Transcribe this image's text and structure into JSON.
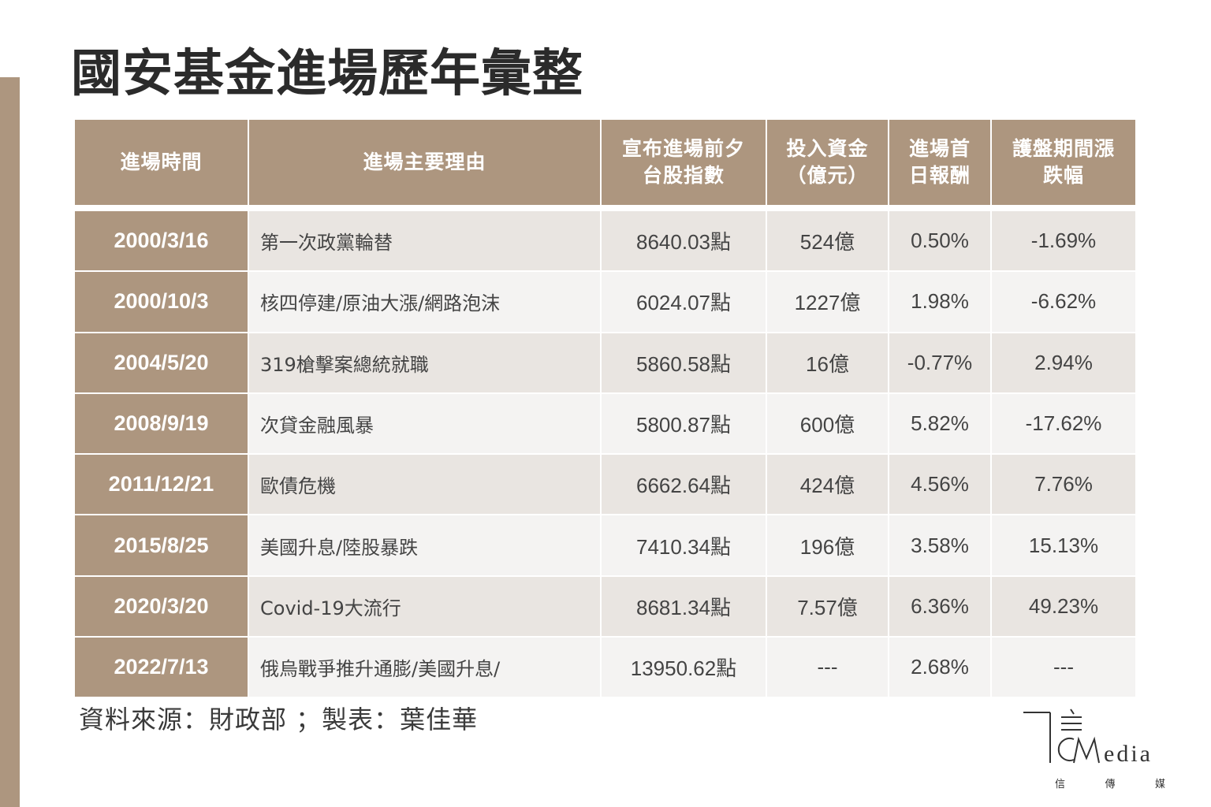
{
  "title": "國安基金進場歷年彙整",
  "table": {
    "headers": [
      {
        "line1": "進場時間",
        "line2": ""
      },
      {
        "line1": "進場主要理由",
        "line2": ""
      },
      {
        "line1": "宣布進場前夕",
        "line2": "台股指數"
      },
      {
        "line1": "投入資金",
        "line2": "（億元）"
      },
      {
        "line1": "進場首",
        "line2": "日報酬"
      },
      {
        "line1": "護盤期間漲",
        "line2": "跌幅"
      }
    ],
    "rows": [
      {
        "date": "2000/3/16",
        "reason": "第一次政黨輪替",
        "index": "8640.03點",
        "fund": "524億",
        "first_day": "0.50%",
        "change": "-1.69%"
      },
      {
        "date": "2000/10/3",
        "reason": "核四停建/原油大漲/網路泡沫",
        "index": "6024.07點",
        "fund": "1227億",
        "first_day": "1.98%",
        "change": "-6.62%"
      },
      {
        "date": "2004/5/20",
        "reason": "319槍擊案總統就職",
        "index": "5860.58點",
        "fund": "16億",
        "first_day": "-0.77%",
        "change": "2.94%"
      },
      {
        "date": "2008/9/19",
        "reason": "次貸金融風暴",
        "index": "5800.87點",
        "fund": "600億",
        "first_day": "5.82%",
        "change": "-17.62%"
      },
      {
        "date": "2011/12/21",
        "reason": "歐債危機",
        "index": "6662.64點",
        "fund": "424億",
        "first_day": "4.56%",
        "change": "7.76%"
      },
      {
        "date": "2015/8/25",
        "reason": "美國升息/陸股暴跌",
        "index": "7410.34點",
        "fund": "196億",
        "first_day": "3.58%",
        "change": "15.13%"
      },
      {
        "date": "2020/3/20",
        "reason": "Covid-19大流行",
        "index": "8681.34點",
        "fund": "7.57億",
        "first_day": "6.36%",
        "change": "49.23%"
      },
      {
        "date": "2022/7/13",
        "reason": "俄烏戰爭推升通膨/美國升息/",
        "index": "13950.62點",
        "fund": "---",
        "first_day": "2.68%",
        "change": "---"
      }
    ]
  },
  "source": "資料來源：財政部 ；製表：葉佳華",
  "logo": {
    "word": "edia",
    "sub": [
      "信",
      "傳",
      "媒"
    ]
  },
  "colors": {
    "accent": "#ad967f",
    "row_odd": "#e9e5e1",
    "row_even": "#f4f3f2"
  }
}
